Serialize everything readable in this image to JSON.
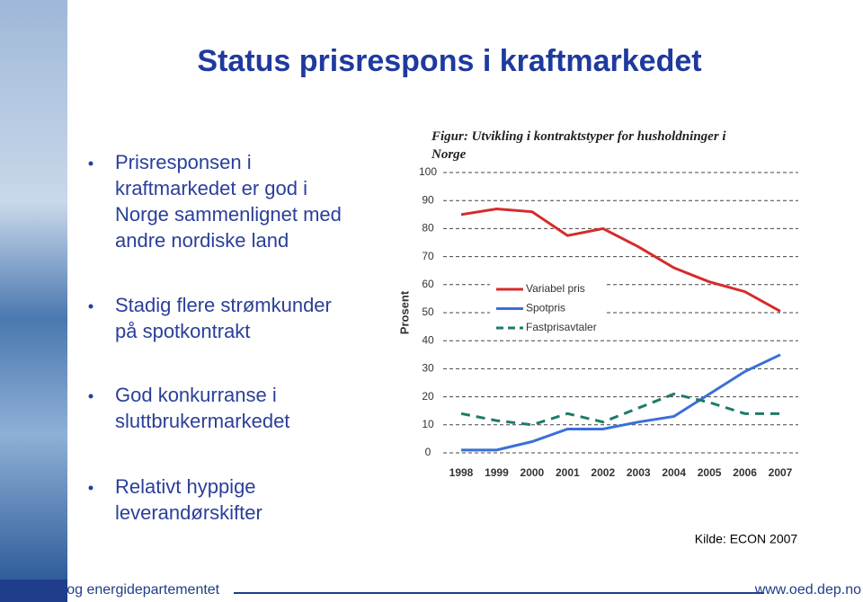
{
  "slide": {
    "title": "Status prisrespons i kraftmarkedet",
    "bullets": [
      [
        "Prisresponsen i",
        "kraftmarkedet er god i",
        "Norge sammenlignet med",
        "andre nordiske land"
      ],
      [
        "Stadig flere strømkunder",
        "på spotkontrakt"
      ],
      [
        "God konkurranse i",
        "sluttbrukermarkedet"
      ],
      [
        "Relativt hyppige",
        "leverandørskifter"
      ]
    ],
    "source": "Kilde: ECON 2007",
    "footer_left": "Olje- og energidepartementet",
    "footer_right": "www.oed.dep.no"
  },
  "chart_data": {
    "type": "line",
    "title": "Figur: Utvikling i kontraktstyper for husholdninger i Norge",
    "y_label": "Prosent",
    "categories": [
      "1998",
      "1999",
      "2000",
      "2001",
      "2002",
      "2003",
      "2004",
      "2005",
      "2006",
      "2007"
    ],
    "series": [
      {
        "name": "Variabel pris",
        "color": "#d62b2b",
        "dashed": false,
        "values": [
          85,
          87,
          86,
          77.5,
          80,
          73.5,
          66,
          61,
          57.5,
          50.5
        ]
      },
      {
        "name": "Spotpris",
        "color": "#3a6fd8",
        "dashed": false,
        "values": [
          1,
          1,
          4,
          8.5,
          8.5,
          11,
          13,
          21,
          29,
          35
        ]
      },
      {
        "name": "Fastprisavtaler",
        "color": "#1e7a6a",
        "dashed": true,
        "values": [
          14,
          11.5,
          10,
          14,
          11,
          16,
          21,
          18,
          14,
          14
        ]
      }
    ],
    "ylim": [
      0,
      100
    ],
    "yticks": [
      0,
      10,
      20,
      30,
      40,
      50,
      60,
      70,
      80,
      90,
      100
    ],
    "grid": true
  }
}
